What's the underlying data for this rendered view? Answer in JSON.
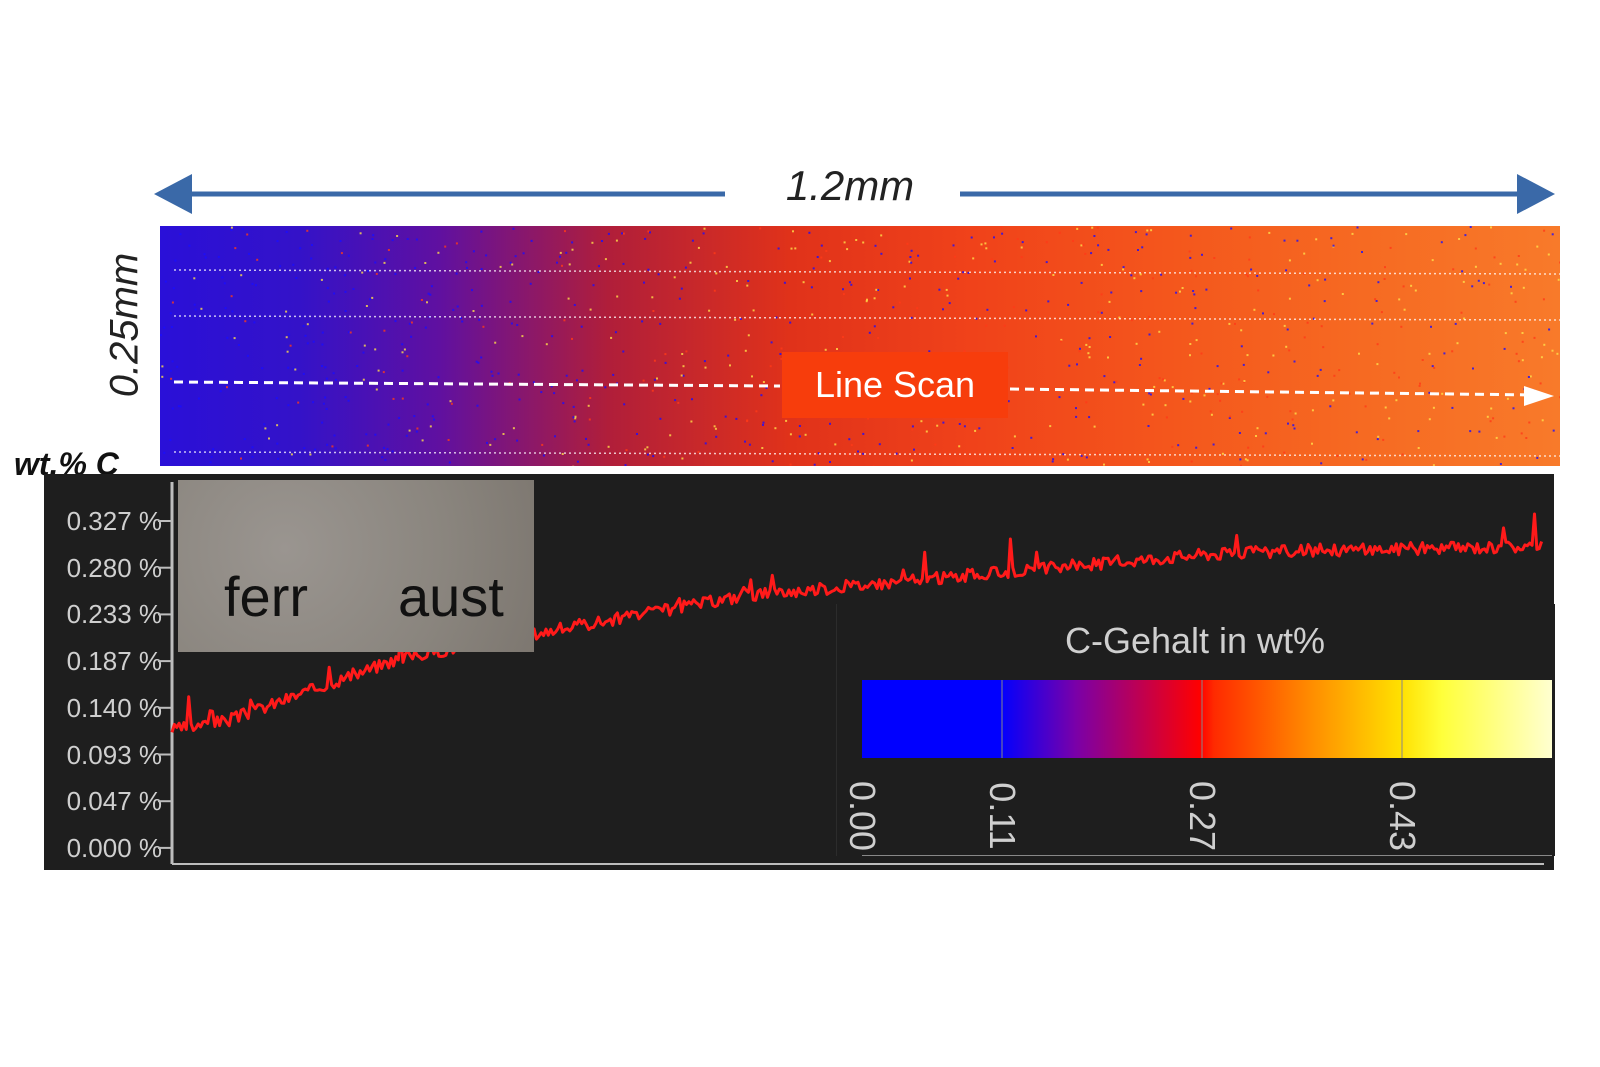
{
  "dimensions": {
    "width_label": "1.2mm",
    "height_label": "0.25mm"
  },
  "map": {
    "badge_label": "Line Scan"
  },
  "inset": {
    "left_label": "ferr",
    "right_label": "aust"
  },
  "colorbar": {
    "title": "C-Gehalt in wt%",
    "ticks": [
      "0.00",
      "0.11",
      "0.27",
      "0.43"
    ]
  },
  "chart_data": {
    "type": "line",
    "title": "",
    "ylabel": "wt.% C",
    "xlabel": "",
    "yticks": [
      "0.327 %",
      "0.280 %",
      "0.233 %",
      "0.187 %",
      "0.140 %",
      "0.093 %",
      "0.047 %",
      "0.000 %"
    ],
    "ylim": [
      0,
      0.35
    ],
    "xlim": [
      0,
      1.2
    ],
    "series": [
      {
        "color": "#ff1a1a",
        "x": [
          0.0,
          0.05,
          0.1,
          0.15,
          0.2,
          0.25,
          0.3,
          0.35,
          0.4,
          0.45,
          0.5,
          0.55,
          0.6,
          0.65,
          0.7,
          0.75,
          0.8,
          0.85,
          0.9,
          0.95,
          1.0,
          1.05,
          1.1,
          1.15,
          1.2
        ],
        "values": [
          0.11,
          0.12,
          0.14,
          0.16,
          0.18,
          0.19,
          0.2,
          0.21,
          0.22,
          0.23,
          0.24,
          0.245,
          0.25,
          0.255,
          0.26,
          0.265,
          0.27,
          0.275,
          0.28,
          0.282,
          0.284,
          0.285,
          0.286,
          0.287,
          0.288
        ]
      }
    ]
  }
}
